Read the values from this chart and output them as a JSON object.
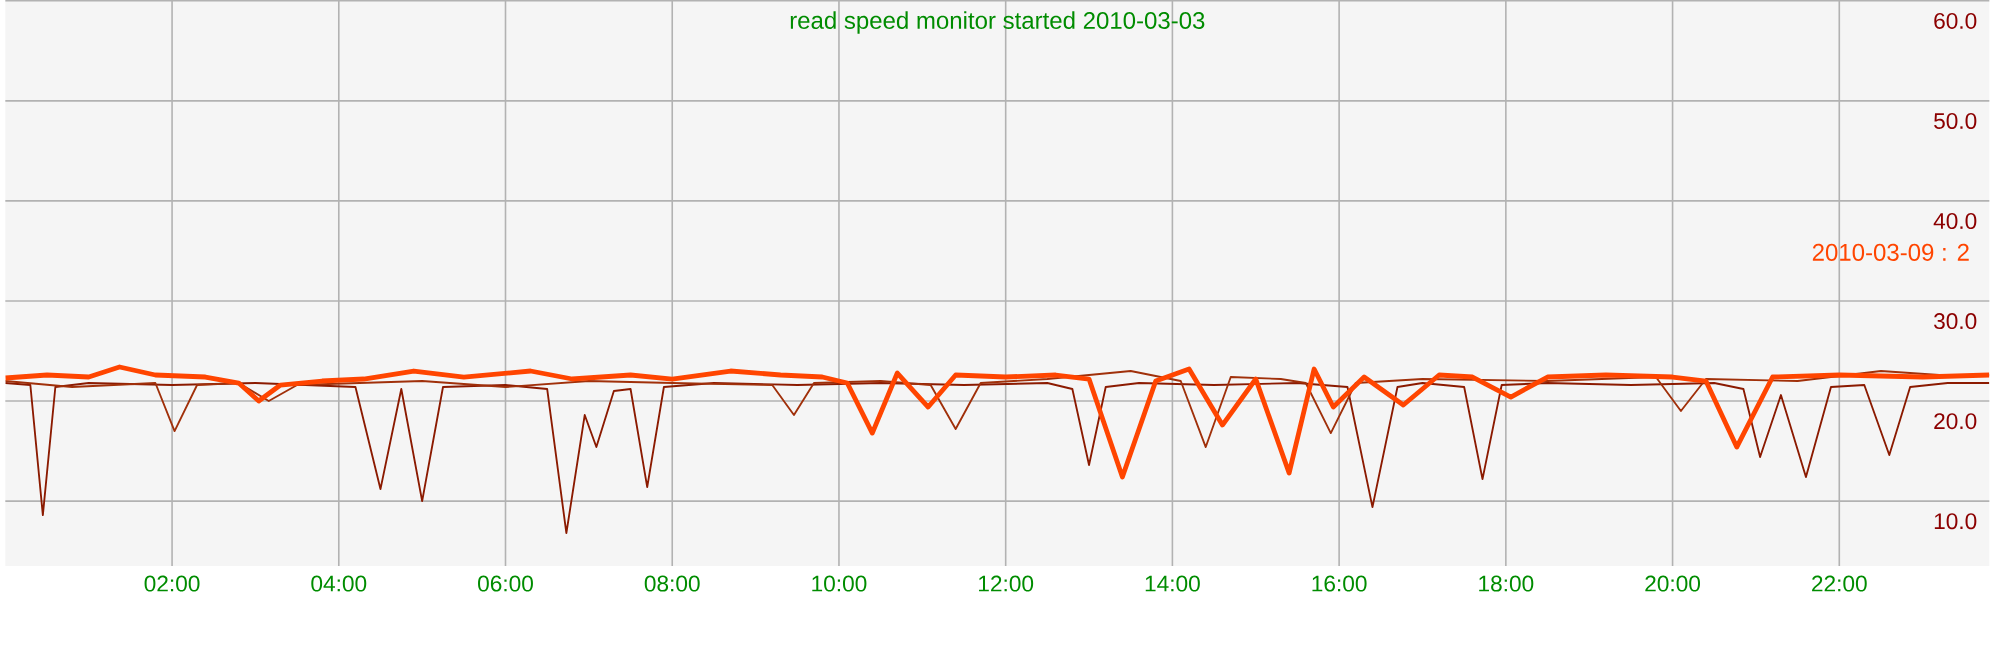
{
  "chart_data": {
    "type": "line",
    "title": "read speed monitor started 2010-03-03",
    "xlim": [
      0,
      23.8
    ],
    "ylim": [
      3.5,
      60
    ],
    "xticks": [
      {
        "value": 2,
        "label": "02:00"
      },
      {
        "value": 4,
        "label": "04:00"
      },
      {
        "value": 6,
        "label": "06:00"
      },
      {
        "value": 8,
        "label": "08:00"
      },
      {
        "value": 10,
        "label": "10:00"
      },
      {
        "value": 12,
        "label": "12:00"
      },
      {
        "value": 14,
        "label": "14:00"
      },
      {
        "value": 16,
        "label": "16:00"
      },
      {
        "value": 18,
        "label": "18:00"
      },
      {
        "value": 20,
        "label": "20:00"
      },
      {
        "value": 22,
        "label": "22:00"
      }
    ],
    "yticks": [
      {
        "value": 10,
        "label": "10.0"
      },
      {
        "value": 20,
        "label": "20.0"
      },
      {
        "value": 30,
        "label": "30.0"
      },
      {
        "value": 40,
        "label": "40.0"
      },
      {
        "value": 50,
        "label": "50.0"
      },
      {
        "value": 60,
        "label": "60.0"
      }
    ],
    "grid": true,
    "legend": false,
    "marker": "none",
    "line_style": "solid",
    "series": [
      {
        "color": "#8b1a00",
        "x": [
          0,
          0.3,
          0.45,
          0.6,
          1.0,
          2.0,
          3.0,
          4.2,
          4.5,
          4.75,
          5.0,
          5.25,
          6.0,
          6.5,
          6.73,
          6.95,
          7.09,
          7.3,
          7.5,
          7.7,
          7.9,
          8.5,
          9.5,
          10.5,
          11.5,
          12.5,
          12.8,
          13.0,
          13.2,
          13.6,
          14.5,
          15.5,
          16.1,
          16.4,
          16.7,
          17.0,
          17.5,
          17.72,
          17.95,
          18.5,
          19.5,
          20.5,
          20.85,
          21.05,
          21.3,
          21.6,
          21.9,
          22.3,
          22.6,
          22.85,
          23.3,
          23.8
        ],
        "values": [
          21.8,
          21.6,
          8.6,
          21.4,
          21.8,
          21.6,
          21.8,
          21.4,
          11.2,
          21.2,
          10,
          21.4,
          21.6,
          21.2,
          6.8,
          18.6,
          15.4,
          21,
          21.2,
          11.4,
          21.4,
          21.8,
          21.6,
          21.8,
          21.6,
          21.8,
          21.2,
          13.6,
          21.4,
          21.8,
          21.6,
          21.8,
          21.4,
          9.4,
          21.4,
          21.8,
          21.4,
          12.2,
          21.6,
          21.8,
          21.6,
          21.8,
          21.2,
          14.4,
          20.6,
          12.4,
          21.4,
          21.6,
          14.6,
          21.4,
          21.8,
          21.8
        ]
      },
      {
        "color": "#a0300a",
        "x": [
          0,
          0.8,
          1.8,
          2.03,
          2.3,
          2.8,
          3.16,
          3.5,
          5.0,
          6.0,
          7.0,
          8.0,
          9.2,
          9.46,
          9.7,
          10.5,
          11.1,
          11.4,
          11.7,
          12.5,
          13.5,
          14.1,
          14.4,
          14.7,
          15.3,
          15.6,
          15.9,
          16.2,
          17.0,
          18.5,
          19.8,
          20.1,
          20.4,
          21.5,
          22.5,
          23.2,
          23.8
        ],
        "values": [
          22,
          21.4,
          21.8,
          17,
          21.6,
          21.8,
          20,
          21.6,
          22,
          21.4,
          22,
          21.8,
          21.6,
          18.6,
          21.8,
          22,
          21.6,
          17.2,
          21.8,
          22.2,
          23,
          22,
          15.4,
          22.4,
          22.2,
          21.8,
          16.8,
          21.8,
          22.2,
          22,
          22.4,
          19,
          22.2,
          22,
          23,
          22.6,
          22.6
        ]
      },
      {
        "name": "2010-03-09 : 2",
        "color": "#ff4500",
        "x": [
          0,
          0.5,
          1.0,
          1.37,
          1.8,
          2.4,
          2.8,
          3.04,
          3.3,
          3.8,
          4.3,
          4.9,
          5.5,
          6.3,
          6.8,
          7.5,
          8.0,
          8.7,
          9.3,
          9.8,
          10.1,
          10.4,
          10.7,
          11.07,
          11.4,
          12.0,
          12.6,
          13.0,
          13.4,
          13.8,
          14.2,
          14.6,
          15.0,
          15.4,
          15.7,
          15.93,
          16.3,
          16.77,
          17.2,
          17.6,
          18.06,
          18.5,
          19.2,
          20.0,
          20.4,
          20.77,
          21.2,
          22.0,
          23.0,
          23.8
        ],
        "values": [
          22.3,
          22.6,
          22.4,
          23.4,
          22.6,
          22.4,
          21.8,
          20,
          21.6,
          22,
          22.2,
          23,
          22.4,
          23,
          22.2,
          22.6,
          22.2,
          23,
          22.6,
          22.4,
          21.8,
          16.8,
          22.8,
          19.4,
          22.6,
          22.4,
          22.6,
          22.2,
          12.4,
          22,
          23.2,
          17.6,
          22.2,
          12.8,
          23.2,
          19.4,
          22.4,
          19.6,
          22.6,
          22.4,
          20.4,
          22.4,
          22.6,
          22.4,
          22,
          15.4,
          22.4,
          22.6,
          22.4,
          22.6
        ]
      }
    ]
  }
}
